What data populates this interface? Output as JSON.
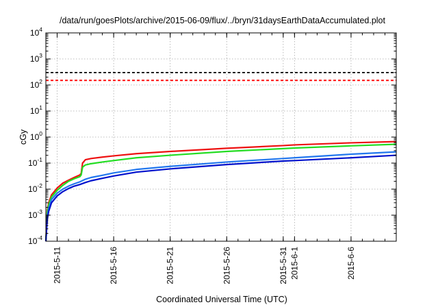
{
  "chart_data": {
    "type": "line",
    "title": "/data/run/goesPlots/archive/2015-06-09/flux/../bryn/31daysEarthDataAccumulated.plot",
    "xlabel": "Coordinated Universal Time (UTC)",
    "ylabel": "cGy",
    "yscale": "log",
    "ylim": [
      0.0001,
      10000
    ],
    "xlim": [
      "2015-05-10",
      "2015-06-10"
    ],
    "grid": true,
    "legend": "none",
    "x_ticks": [
      {
        "date": "2015-05-11",
        "label": "2015-5-11"
      },
      {
        "date": "2015-05-16",
        "label": "2015-5-16"
      },
      {
        "date": "2015-05-21",
        "label": "2015-5-21"
      },
      {
        "date": "2015-05-26",
        "label": "2015-5-26"
      },
      {
        "date": "2015-05-31",
        "label": "2015-5-31"
      },
      {
        "date": "2015-06-01",
        "label": "2015-6-1"
      },
      {
        "date": "2015-06-06",
        "label": "2015-6-6"
      }
    ],
    "y_ticks": [
      {
        "value": 0.0001,
        "base": "10",
        "exp": "-4"
      },
      {
        "value": 0.001,
        "base": "10",
        "exp": "-3"
      },
      {
        "value": 0.01,
        "base": "10",
        "exp": "-2"
      },
      {
        "value": 0.1,
        "base": "10",
        "exp": "-1"
      },
      {
        "value": 1,
        "base": "10",
        "exp": "0"
      },
      {
        "value": 10,
        "base": "10",
        "exp": "1"
      },
      {
        "value": 100,
        "base": "10",
        "exp": "2"
      },
      {
        "value": 1000,
        "base": "10",
        "exp": "3"
      },
      {
        "value": 10000,
        "base": "10",
        "exp": "4"
      }
    ],
    "thresholds": [
      {
        "value": 300,
        "color": "#000000",
        "style": "dashed"
      },
      {
        "value": 150,
        "color": "#ff0000",
        "style": "dashed"
      }
    ],
    "series": [
      {
        "color": "#ee1111",
        "points": [
          [
            "2015-05-10",
            0.0001
          ],
          [
            "2015-05-10T03:00",
            0.0015
          ],
          [
            "2015-05-10T06:00",
            0.003
          ],
          [
            "2015-05-10T12:00",
            0.006
          ],
          [
            "2015-05-11",
            0.011
          ],
          [
            "2015-05-11T12:00",
            0.017
          ],
          [
            "2015-05-12",
            0.022
          ],
          [
            "2015-05-12T12:00",
            0.028
          ],
          [
            "2015-05-13",
            0.035
          ],
          [
            "2015-05-13T03:00",
            0.04
          ],
          [
            "2015-05-13T06:00",
            0.1
          ],
          [
            "2015-05-13T12:00",
            0.135
          ],
          [
            "2015-05-14",
            0.15
          ],
          [
            "2015-05-15",
            0.17
          ],
          [
            "2015-05-16",
            0.19
          ],
          [
            "2015-05-18",
            0.23
          ],
          [
            "2015-05-21",
            0.28
          ],
          [
            "2015-05-26",
            0.37
          ],
          [
            "2015-05-31",
            0.47
          ],
          [
            "2015-06-01",
            0.5
          ],
          [
            "2015-06-06",
            0.6
          ],
          [
            "2015-06-10",
            0.67
          ]
        ]
      },
      {
        "color": "#22dd22",
        "points": [
          [
            "2015-05-10",
            0.0001
          ],
          [
            "2015-05-10T03:00",
            0.0013
          ],
          [
            "2015-05-10T06:00",
            0.0025
          ],
          [
            "2015-05-10T12:00",
            0.005
          ],
          [
            "2015-05-11",
            0.009
          ],
          [
            "2015-05-11T12:00",
            0.014
          ],
          [
            "2015-05-12",
            0.02
          ],
          [
            "2015-05-12T12:00",
            0.025
          ],
          [
            "2015-05-13",
            0.03
          ],
          [
            "2015-05-13T03:00",
            0.035
          ],
          [
            "2015-05-13T06:00",
            0.07
          ],
          [
            "2015-05-13T12:00",
            0.085
          ],
          [
            "2015-05-14",
            0.095
          ],
          [
            "2015-05-15",
            0.11
          ],
          [
            "2015-05-16",
            0.125
          ],
          [
            "2015-05-18",
            0.16
          ],
          [
            "2015-05-21",
            0.2
          ],
          [
            "2015-05-26",
            0.28
          ],
          [
            "2015-05-31",
            0.36
          ],
          [
            "2015-06-01",
            0.38
          ],
          [
            "2015-06-06",
            0.46
          ],
          [
            "2015-06-10",
            0.53
          ]
        ]
      },
      {
        "color": "#2277ee",
        "points": [
          [
            "2015-05-10",
            0.0001
          ],
          [
            "2015-05-10T03:00",
            0.0009
          ],
          [
            "2015-05-10T06:00",
            0.0018
          ],
          [
            "2015-05-10T12:00",
            0.004
          ],
          [
            "2015-05-11",
            0.007
          ],
          [
            "2015-05-11T12:00",
            0.01
          ],
          [
            "2015-05-12",
            0.013
          ],
          [
            "2015-05-12T12:00",
            0.016
          ],
          [
            "2015-05-13",
            0.019
          ],
          [
            "2015-05-13T12:00",
            0.024
          ],
          [
            "2015-05-14",
            0.028
          ],
          [
            "2015-05-15",
            0.034
          ],
          [
            "2015-05-16",
            0.042
          ],
          [
            "2015-05-18",
            0.057
          ],
          [
            "2015-05-21",
            0.075
          ],
          [
            "2015-05-26",
            0.11
          ],
          [
            "2015-05-31",
            0.15
          ],
          [
            "2015-06-01",
            0.16
          ],
          [
            "2015-06-06",
            0.22
          ],
          [
            "2015-06-10",
            0.27
          ]
        ]
      },
      {
        "color": "#0011cc",
        "points": [
          [
            "2015-05-10",
            0.0001
          ],
          [
            "2015-05-10T03:00",
            0.0007
          ],
          [
            "2015-05-10T06:00",
            0.0014
          ],
          [
            "2015-05-10T12:00",
            0.003
          ],
          [
            "2015-05-11",
            0.0055
          ],
          [
            "2015-05-11T12:00",
            0.008
          ],
          [
            "2015-05-12",
            0.0105
          ],
          [
            "2015-05-12T12:00",
            0.013
          ],
          [
            "2015-05-13",
            0.015
          ],
          [
            "2015-05-13T12:00",
            0.018
          ],
          [
            "2015-05-14",
            0.021
          ],
          [
            "2015-05-15",
            0.026
          ],
          [
            "2015-05-16",
            0.032
          ],
          [
            "2015-05-18",
            0.045
          ],
          [
            "2015-05-21",
            0.06
          ],
          [
            "2015-05-26",
            0.088
          ],
          [
            "2015-05-31",
            0.12
          ],
          [
            "2015-06-01",
            0.125
          ],
          [
            "2015-06-06",
            0.16
          ],
          [
            "2015-06-10",
            0.2
          ]
        ]
      }
    ]
  }
}
